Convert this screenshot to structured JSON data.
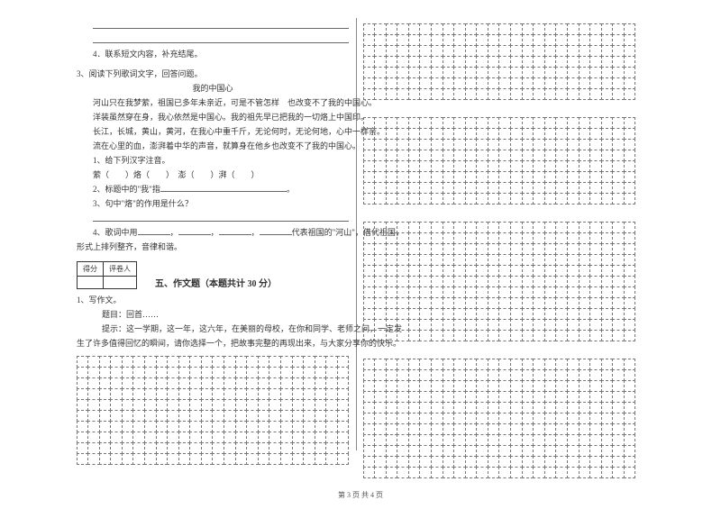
{
  "left": {
    "q4": "4．联系短文内容，补充结尾。",
    "q3_intro": "3、阅读下列歌词文字，回答问题。",
    "title": "我的中国心",
    "p1": "河山只在我梦萦，祖国已多年未亲近，可是不管怎样　也改变不了我的中国心。",
    "p2": "洋装虽然穿在身，我心依然是中国心。我的祖先早已把我的一切烙上中国印。",
    "p3": "长江，长城，黄山，黄河，在我心中重千斤，无论何时，无论何地，心中一样亲。",
    "p4": "流在心里的血，澎湃着中华的声音，就算身在他乡也改变不了我的中国心。",
    "sub1": "1、给下列汉字注音。",
    "sub1_line": "萦（　　）烙（　　）　澎（　　）湃（　　）",
    "sub2_a": "2、标题中的\"我\"指",
    "sub2_b": "。",
    "sub3": "3、句中\"烙\"的作用是什么？",
    "sub4_a": "4、歌词中用",
    "sub4_b": "代表祖国的\"河山\"，借代祖国，",
    "sub4_c": "形式上排列整齐，音律和谐。",
    "section5": "五、作文题（本题共计 30 分）",
    "score_h1": "得分",
    "score_h2": "评卷人",
    "w1": "1、写作文。",
    "w2": "题目：回首……",
    "w3": "提示：这一学期，这一年，这六年，在美丽的母校，在你和同学、老师之间，一定发",
    "w4": "生了许多值得回忆的瞬间，请你选择一个，把故事完整的再现出来，与大家分享你的快乐。"
  },
  "footer": "第 3 页  共 4 页",
  "grids": {
    "left_cols": 24,
    "left_rows": 10,
    "right_cols": 24,
    "right_block_rows": [
      7,
      8,
      11,
      11
    ]
  },
  "colors": {
    "text": "#333333",
    "rule": "#666666",
    "grid": "#777777"
  }
}
